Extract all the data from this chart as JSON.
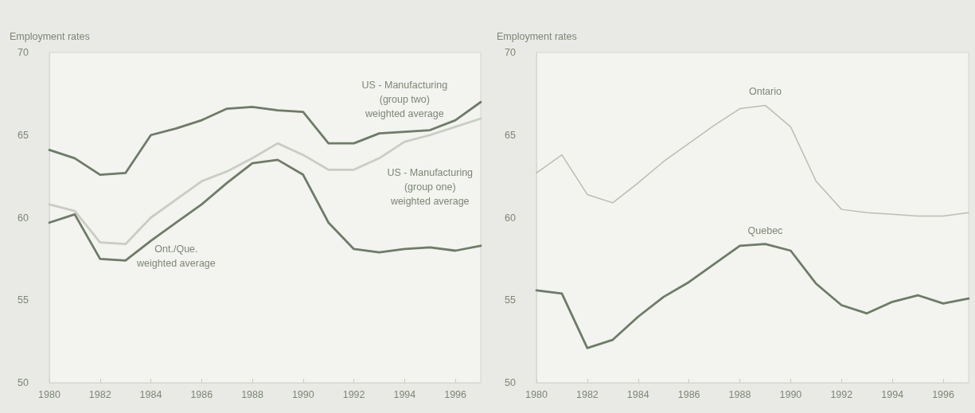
{
  "chart_data": [
    {
      "type": "line",
      "ylabel": "Employment rates",
      "x": [
        1980,
        1981,
        1982,
        1983,
        1984,
        1985,
        1986,
        1987,
        1988,
        1989,
        1990,
        1991,
        1992,
        1993,
        1994,
        1995,
        1996,
        1997
      ],
      "xlim": [
        1980,
        1997
      ],
      "xticks": [
        1980,
        1982,
        1984,
        1986,
        1988,
        1990,
        1992,
        1994,
        1996
      ],
      "ylim": [
        50,
        70
      ],
      "yticks": [
        50,
        55,
        60,
        65,
        70
      ],
      "grid": false,
      "marker": "none",
      "line_style": "solid",
      "series": [
        {
          "name": "US - Manufacturing\n(group two)\nweighted average",
          "color": "#6e7c66",
          "values": [
            64.1,
            63.6,
            62.6,
            62.7,
            65.0,
            65.4,
            65.9,
            66.6,
            66.7,
            66.5,
            66.4,
            64.5,
            64.5,
            65.1,
            65.2,
            65.3,
            65.9,
            67.0
          ]
        },
        {
          "name": "US - Manufacturing\n(group one)\nweighted average",
          "color": "#c9cdc4",
          "values": [
            60.8,
            60.4,
            58.5,
            58.4,
            60.0,
            61.1,
            62.2,
            62.8,
            63.6,
            64.5,
            63.8,
            62.9,
            62.9,
            63.6,
            64.6,
            65.0,
            65.5,
            66.0
          ]
        },
        {
          "name": "Ont./Que.\nweighted average",
          "color": "#6e7c66",
          "values": [
            59.7,
            60.2,
            57.5,
            57.4,
            58.6,
            59.7,
            60.8,
            62.1,
            63.3,
            63.5,
            62.6,
            59.7,
            58.1,
            57.9,
            58.1,
            58.2,
            58.0,
            58.3
          ]
        }
      ]
    },
    {
      "type": "line",
      "ylabel": "Employment rates",
      "x": [
        1980,
        1981,
        1982,
        1983,
        1984,
        1985,
        1986,
        1987,
        1988,
        1989,
        1990,
        1991,
        1992,
        1993,
        1994,
        1995,
        1996,
        1997
      ],
      "xlim": [
        1980,
        1997
      ],
      "xticks": [
        1980,
        1982,
        1984,
        1986,
        1988,
        1990,
        1992,
        1994,
        1996
      ],
      "ylim": [
        50,
        70
      ],
      "yticks": [
        50,
        55,
        60,
        65,
        70
      ],
      "grid": false,
      "marker": "none",
      "line_style": "solid",
      "series": [
        {
          "name": "Ontario",
          "color": "#b9bfb2",
          "values": [
            62.7,
            63.8,
            61.4,
            60.9,
            62.1,
            63.4,
            64.5,
            65.6,
            66.6,
            66.8,
            65.5,
            62.2,
            60.5,
            60.3,
            60.2,
            60.1,
            60.1,
            60.3
          ]
        },
        {
          "name": "Quebec",
          "color": "#6e7c66",
          "values": [
            55.6,
            55.4,
            52.1,
            52.6,
            54.0,
            55.2,
            56.1,
            57.2,
            58.3,
            58.4,
            58.0,
            56.0,
            54.7,
            54.2,
            54.9,
            55.3,
            54.8,
            55.1
          ]
        }
      ]
    }
  ]
}
